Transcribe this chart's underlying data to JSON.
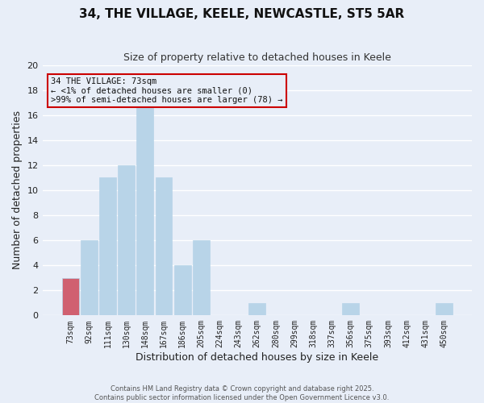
{
  "title": "34, THE VILLAGE, KEELE, NEWCASTLE, ST5 5AR",
  "subtitle": "Size of property relative to detached houses in Keele",
  "xlabel": "Distribution of detached houses by size in Keele",
  "ylabel": "Number of detached properties",
  "categories": [
    "73sqm",
    "92sqm",
    "111sqm",
    "130sqm",
    "148sqm",
    "167sqm",
    "186sqm",
    "205sqm",
    "224sqm",
    "243sqm",
    "262sqm",
    "280sqm",
    "299sqm",
    "318sqm",
    "337sqm",
    "356sqm",
    "375sqm",
    "393sqm",
    "412sqm",
    "431sqm",
    "450sqm"
  ],
  "values": [
    3,
    6,
    11,
    12,
    17,
    11,
    4,
    6,
    0,
    0,
    1,
    0,
    0,
    0,
    0,
    1,
    0,
    0,
    0,
    0,
    1
  ],
  "highlight_index": 0,
  "bar_color": "#b8d4e8",
  "highlight_bar_color": "#d06070",
  "ylim": [
    0,
    20
  ],
  "yticks": [
    0,
    2,
    4,
    6,
    8,
    10,
    12,
    14,
    16,
    18,
    20
  ],
  "annotation_title": "34 THE VILLAGE: 73sqm",
  "annotation_line1": "← <1% of detached houses are smaller (0)",
  "annotation_line2": ">99% of semi-detached houses are larger (78) →",
  "footer1": "Contains HM Land Registry data © Crown copyright and database right 2025.",
  "footer2": "Contains public sector information licensed under the Open Government Licence v3.0.",
  "background_color": "#e8eef8",
  "grid_color": "#ffffff",
  "box_color": "#cc0000"
}
